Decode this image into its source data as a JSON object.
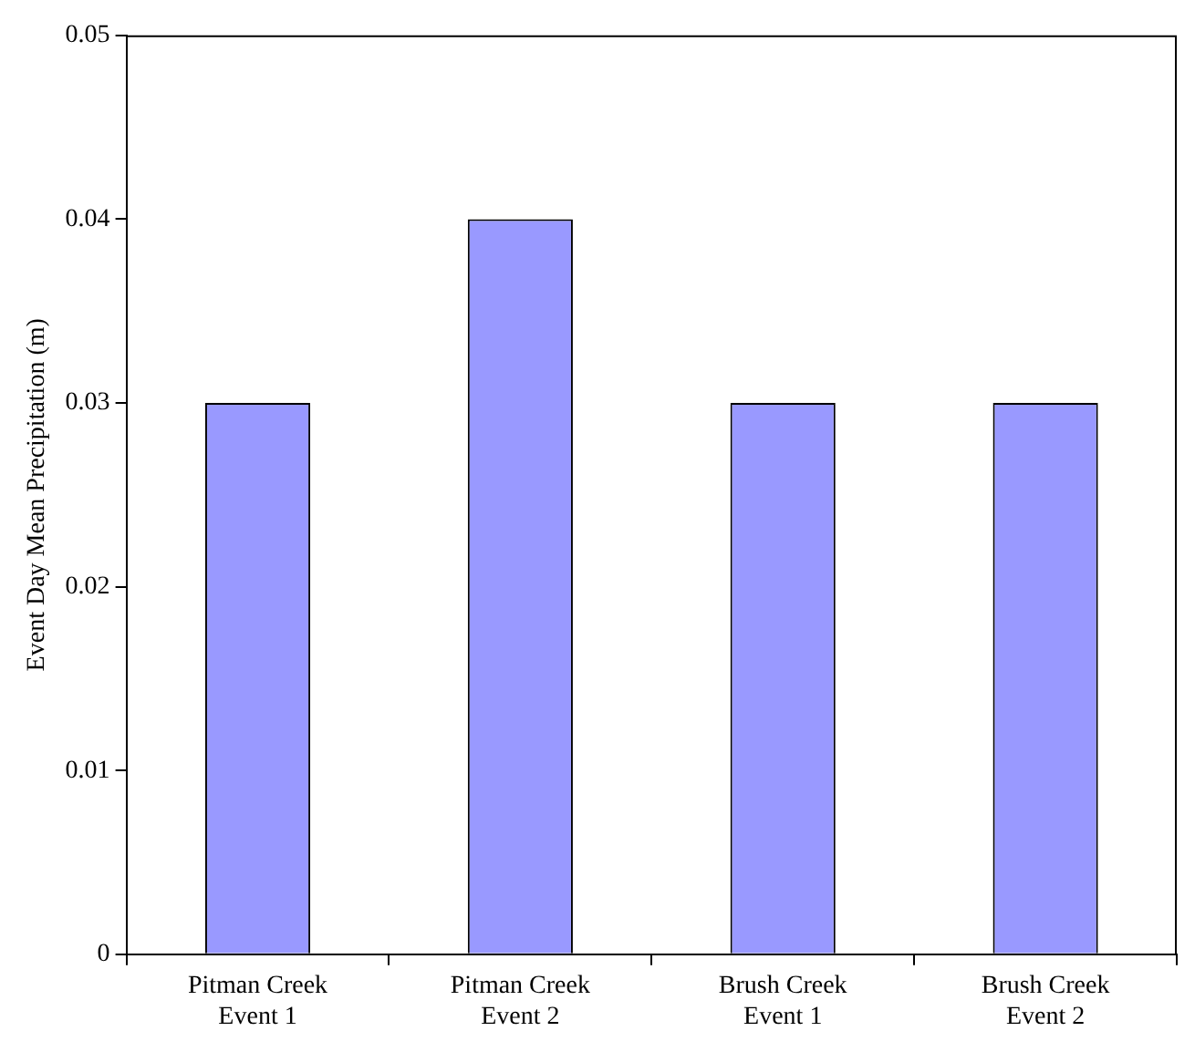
{
  "chart_data": {
    "type": "bar",
    "ylabel": "Event Day Mean Precipitation (m)",
    "categories": [
      "Pitman Creek Event 1",
      "Pitman Creek Event 2",
      "Brush Creek Event 1",
      "Brush Creek Event 2"
    ],
    "values": [
      0.03,
      0.04,
      0.03,
      0.03
    ],
    "color": "#9999ff",
    "ylim": [
      0,
      0.05
    ],
    "yticks": [
      0,
      0.01,
      0.02,
      0.03,
      0.04,
      0.05
    ],
    "grid": false,
    "legend": false
  }
}
